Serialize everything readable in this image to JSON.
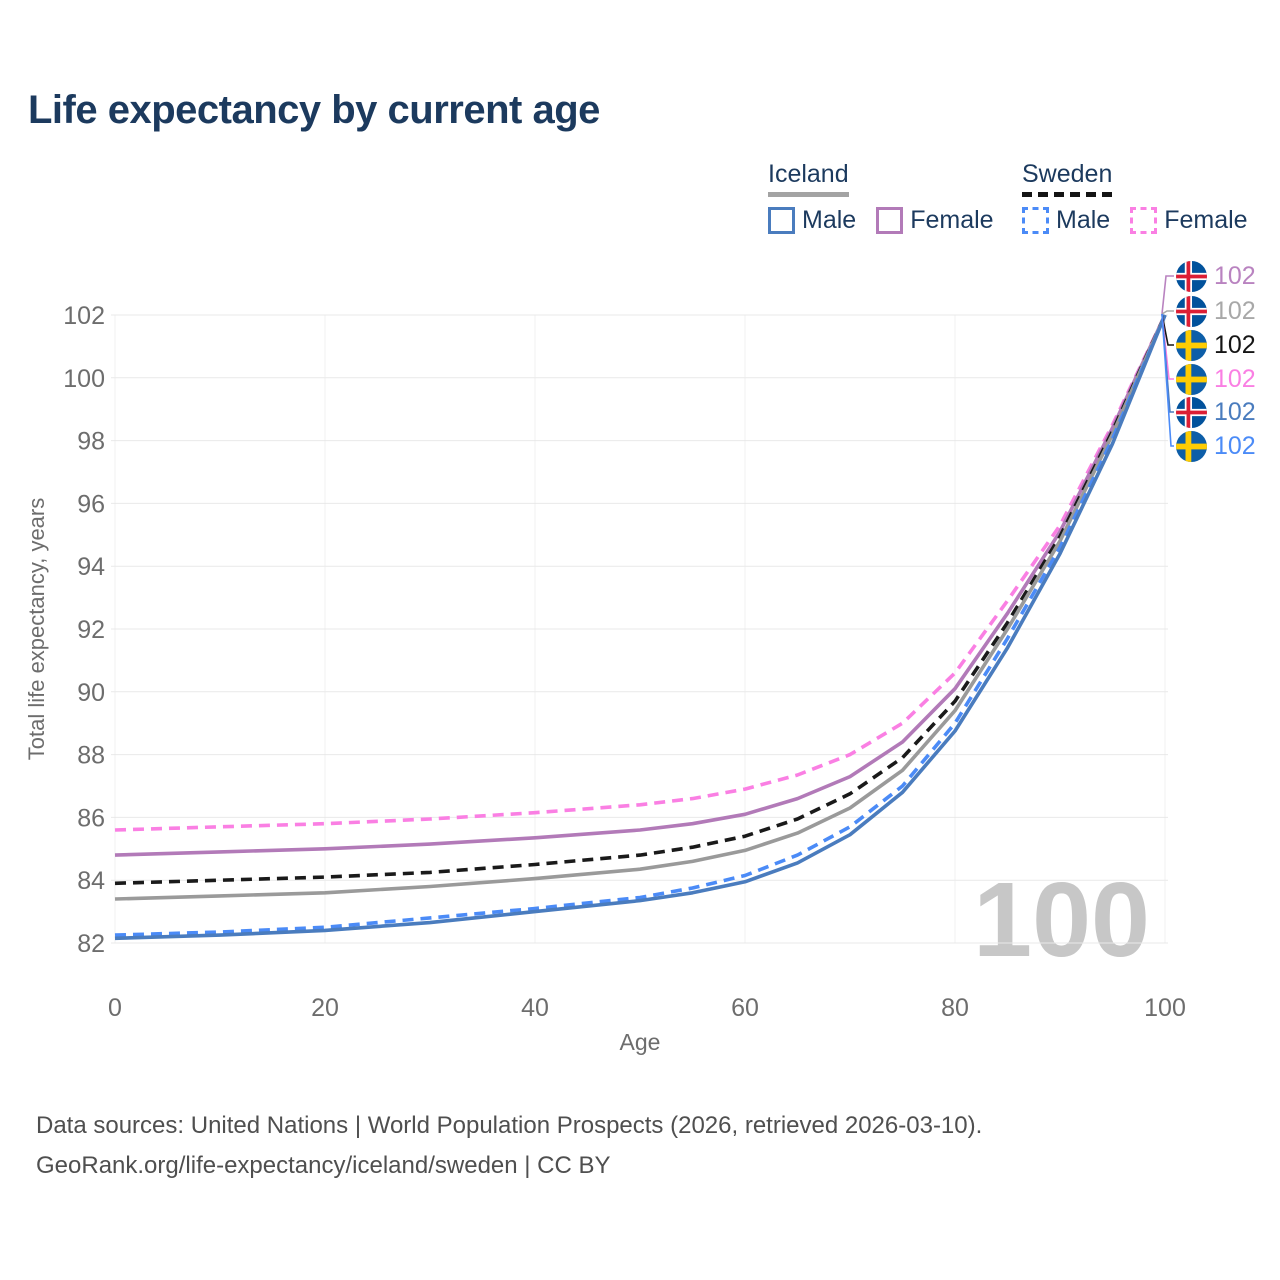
{
  "title": "Life expectancy by current age",
  "legend": {
    "groups": [
      {
        "name": "Iceland",
        "line_style": "solid",
        "underline_color": "#a3a3a3",
        "items": [
          {
            "label": "Male",
            "color": "#4a7cbe",
            "dashed": false
          },
          {
            "label": "Female",
            "color": "#b27ab8",
            "dashed": false
          }
        ]
      },
      {
        "name": "Sweden",
        "line_style": "dashed",
        "underline_color": "#141414",
        "items": [
          {
            "label": "Male",
            "color": "#4b8bf7",
            "dashed": true
          },
          {
            "label": "Female",
            "color": "#fa7fe3",
            "dashed": true
          }
        ]
      }
    ]
  },
  "watermark": "100",
  "footer": {
    "line1": "Data sources: United Nations | World Population Prospects (2026, retrieved 2026-03-10).",
    "line2": "GeoRank.org/life-expectancy/iceland/sweden | CC BY"
  },
  "flags": {
    "iceland": {
      "base": "#02529C",
      "cross": "#ffffff",
      "inner": "#DC1E35"
    },
    "sweden": {
      "base": "#0D5EA8",
      "cross": "#FECC02"
    }
  },
  "end_labels": [
    {
      "value": "102",
      "flag": "iceland",
      "color": "#b983c0",
      "series": "Iceland Female"
    },
    {
      "value": "102",
      "flag": "iceland",
      "color": "#a8a8a8",
      "series": "Iceland"
    },
    {
      "value": "102",
      "flag": "sweden",
      "color": "#151515",
      "series": "Sweden"
    },
    {
      "value": "102",
      "flag": "sweden",
      "color": "#fa7fe3",
      "series": "Sweden Female"
    },
    {
      "value": "102",
      "flag": "iceland",
      "color": "#4a7cbe",
      "series": "Iceland Male"
    },
    {
      "value": "102",
      "flag": "sweden",
      "color": "#4b8bf7",
      "series": "Sweden Male"
    }
  ],
  "chart_data": {
    "type": "line",
    "title": "Life expectancy by current age",
    "xlabel": "Age",
    "ylabel": "Total life expectancy, years",
    "xlim": [
      0,
      100
    ],
    "ylim": [
      82,
      102
    ],
    "x_ticks": [
      0,
      20,
      40,
      60,
      80,
      100
    ],
    "y_ticks": [
      82,
      84,
      86,
      88,
      90,
      92,
      94,
      96,
      98,
      100,
      102
    ],
    "grid": true,
    "legend_position": "top-right",
    "x": [
      0,
      10,
      20,
      30,
      40,
      50,
      55,
      60,
      65,
      70,
      75,
      80,
      85,
      90,
      95,
      100
    ],
    "series": [
      {
        "name": "Sweden Female",
        "color": "#fa7fe3",
        "dashed": true,
        "values": [
          85.6,
          85.7,
          85.8,
          85.95,
          86.15,
          86.4,
          86.6,
          86.9,
          87.35,
          88.0,
          89.0,
          90.6,
          92.9,
          95.3,
          98.5,
          102
        ]
      },
      {
        "name": "Iceland Female",
        "color": "#b27ab8",
        "dashed": false,
        "values": [
          84.8,
          84.9,
          85.0,
          85.15,
          85.35,
          85.6,
          85.8,
          86.1,
          86.6,
          87.3,
          88.4,
          90.1,
          92.5,
          95.1,
          98.4,
          102
        ]
      },
      {
        "name": "Sweden",
        "color": "#1a1a1a",
        "dashed": true,
        "values": [
          83.9,
          84.0,
          84.1,
          84.25,
          84.5,
          84.8,
          85.05,
          85.4,
          85.95,
          86.75,
          87.9,
          89.7,
          92.2,
          94.95,
          98.3,
          102
        ]
      },
      {
        "name": "Iceland",
        "color": "#9a9a9a",
        "dashed": false,
        "values": [
          83.4,
          83.5,
          83.6,
          83.8,
          84.05,
          84.35,
          84.6,
          84.95,
          85.5,
          86.3,
          87.5,
          89.4,
          92.0,
          94.8,
          98.2,
          102
        ]
      },
      {
        "name": "Sweden Male",
        "color": "#4b8bf7",
        "dashed": true,
        "values": [
          82.25,
          82.35,
          82.5,
          82.8,
          83.1,
          83.45,
          83.75,
          84.15,
          84.8,
          85.7,
          87.0,
          89.0,
          91.7,
          94.6,
          98.05,
          102
        ]
      },
      {
        "name": "Iceland Male",
        "color": "#4a7cbe",
        "dashed": false,
        "values": [
          82.15,
          82.25,
          82.4,
          82.65,
          83.0,
          83.35,
          83.6,
          83.95,
          84.55,
          85.45,
          86.8,
          88.75,
          91.4,
          94.4,
          97.9,
          102
        ]
      }
    ],
    "end_label_y": [
      276,
      311,
      345,
      379,
      412,
      446
    ]
  }
}
